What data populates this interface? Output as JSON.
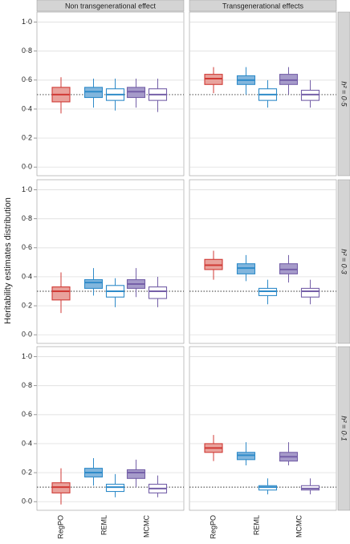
{
  "chart_data": {
    "type": "box",
    "ylabel": "Heritability estimates distribution",
    "columns": [
      "Non transgenerational effect",
      "Transgenerational effects"
    ],
    "categories": [
      "RegPO",
      "REML",
      "MCMC"
    ],
    "ylim": [
      -0.06,
      1.07
    ],
    "yticks": [
      {
        "value": 0,
        "label": "0·0"
      },
      {
        "value": 0.2,
        "label": "0·2"
      },
      {
        "value": 0.4,
        "label": "0·4"
      },
      {
        "value": 0.6,
        "label": "0·6"
      },
      {
        "value": 0.8,
        "label": "0·8"
      },
      {
        "value": 1,
        "label": "1·0"
      }
    ],
    "grid": true,
    "series": [
      {
        "color": "#d03a35",
        "fill": "#e9a29c"
      },
      {
        "color": "#2f8bc9",
        "fill": "#82b6dd"
      },
      {
        "color": "#2f8bc9",
        "fill": "#ffffff"
      },
      {
        "color": "#7560a8",
        "fill": "#a69bca"
      },
      {
        "color": "#7560a8",
        "fill": "#ffffff"
      }
    ],
    "rows": [
      {
        "label": "h² = 0·5",
        "reference": 0.5,
        "panels": [
          {
            "values": [
              [
                {
                  "min": 0.37,
                  "q1": 0.45,
                  "median": 0.5,
                  "q3": 0.55,
                  "max": 0.62
                },
                null,
                null
              ],
              [
                null,
                {
                  "min": 0.41,
                  "q1": 0.48,
                  "median": 0.52,
                  "q3": 0.55,
                  "max": 0.61
                },
                null
              ],
              [
                null,
                {
                  "min": 0.39,
                  "q1": 0.46,
                  "median": 0.5,
                  "q3": 0.54,
                  "max": 0.61
                },
                null
              ],
              [
                null,
                null,
                {
                  "min": 0.41,
                  "q1": 0.48,
                  "median": 0.52,
                  "q3": 0.55,
                  "max": 0.61
                }
              ],
              [
                null,
                null,
                {
                  "min": 0.38,
                  "q1": 0.46,
                  "median": 0.5,
                  "q3": 0.54,
                  "max": 0.61
                }
              ]
            ]
          },
          {
            "values": [
              [
                {
                  "min": 0.51,
                  "q1": 0.57,
                  "median": 0.61,
                  "q3": 0.64,
                  "max": 0.69
                },
                null,
                null
              ],
              [
                null,
                {
                  "min": 0.5,
                  "q1": 0.57,
                  "median": 0.6,
                  "q3": 0.63,
                  "max": 0.69
                },
                null
              ],
              [
                null,
                {
                  "min": 0.41,
                  "q1": 0.46,
                  "median": 0.5,
                  "q3": 0.54,
                  "max": 0.6
                },
                null
              ],
              [
                null,
                null,
                {
                  "min": 0.5,
                  "q1": 0.57,
                  "median": 0.6,
                  "q3": 0.64,
                  "max": 0.69
                }
              ],
              [
                null,
                null,
                {
                  "min": 0.41,
                  "q1": 0.46,
                  "median": 0.5,
                  "q3": 0.53,
                  "max": 0.6
                }
              ]
            ]
          }
        ]
      },
      {
        "label": "h² = 0·3",
        "reference": 0.3,
        "panels": [
          {
            "values": [
              [
                {
                  "min": 0.15,
                  "q1": 0.24,
                  "median": 0.3,
                  "q3": 0.33,
                  "max": 0.43
                },
                null,
                null
              ],
              [
                null,
                {
                  "min": 0.27,
                  "q1": 0.32,
                  "median": 0.36,
                  "q3": 0.38,
                  "max": 0.46
                },
                null
              ],
              [
                null,
                {
                  "min": 0.19,
                  "q1": 0.26,
                  "median": 0.3,
                  "q3": 0.34,
                  "max": 0.39
                },
                null
              ],
              [
                null,
                null,
                {
                  "min": 0.26,
                  "q1": 0.32,
                  "median": 0.35,
                  "q3": 0.38,
                  "max": 0.46
                }
              ],
              [
                null,
                null,
                {
                  "min": 0.19,
                  "q1": 0.25,
                  "median": 0.3,
                  "q3": 0.33,
                  "max": 0.4
                }
              ]
            ]
          },
          {
            "values": [
              [
                {
                  "min": 0.38,
                  "q1": 0.45,
                  "median": 0.48,
                  "q3": 0.52,
                  "max": 0.58
                },
                null,
                null
              ],
              [
                null,
                {
                  "min": 0.37,
                  "q1": 0.42,
                  "median": 0.46,
                  "q3": 0.49,
                  "max": 0.55
                },
                null
              ],
              [
                null,
                {
                  "min": 0.21,
                  "q1": 0.27,
                  "median": 0.3,
                  "q3": 0.32,
                  "max": 0.38
                },
                null
              ],
              [
                null,
                null,
                {
                  "min": 0.36,
                  "q1": 0.42,
                  "median": 0.45,
                  "q3": 0.49,
                  "max": 0.55
                }
              ],
              [
                null,
                null,
                {
                  "min": 0.21,
                  "q1": 0.26,
                  "median": 0.3,
                  "q3": 0.32,
                  "max": 0.38
                }
              ]
            ]
          }
        ]
      },
      {
        "label": "h² = 0·1",
        "reference": 0.1,
        "panels": [
          {
            "values": [
              [
                {
                  "min": -0.02,
                  "q1": 0.06,
                  "median": 0.1,
                  "q3": 0.13,
                  "max": 0.23
                },
                null,
                null
              ],
              [
                null,
                {
                  "min": 0.11,
                  "q1": 0.17,
                  "median": 0.2,
                  "q3": 0.23,
                  "max": 0.3
                },
                null
              ],
              [
                null,
                {
                  "min": 0.03,
                  "q1": 0.07,
                  "median": 0.1,
                  "q3": 0.12,
                  "max": 0.19
                },
                null
              ],
              [
                null,
                null,
                {
                  "min": 0.1,
                  "q1": 0.16,
                  "median": 0.2,
                  "q3": 0.22,
                  "max": 0.29
                }
              ],
              [
                null,
                null,
                {
                  "min": 0.03,
                  "q1": 0.06,
                  "median": 0.09,
                  "q3": 0.12,
                  "max": 0.18
                }
              ]
            ]
          },
          {
            "values": [
              [
                {
                  "min": 0.28,
                  "q1": 0.34,
                  "median": 0.37,
                  "q3": 0.4,
                  "max": 0.46
                },
                null,
                null
              ],
              [
                null,
                {
                  "min": 0.25,
                  "q1": 0.29,
                  "median": 0.32,
                  "q3": 0.34,
                  "max": 0.41
                },
                null
              ],
              [
                null,
                {
                  "min": 0.05,
                  "q1": 0.08,
                  "median": 0.1,
                  "q3": 0.11,
                  "max": 0.16
                },
                null
              ],
              [
                null,
                null,
                {
                  "min": 0.25,
                  "q1": 0.28,
                  "median": 0.31,
                  "q3": 0.34,
                  "max": 0.41
                }
              ],
              [
                null,
                null,
                {
                  "min": 0.05,
                  "q1": 0.08,
                  "median": 0.09,
                  "q3": 0.11,
                  "max": 0.16
                }
              ]
            ]
          }
        ]
      }
    ]
  }
}
